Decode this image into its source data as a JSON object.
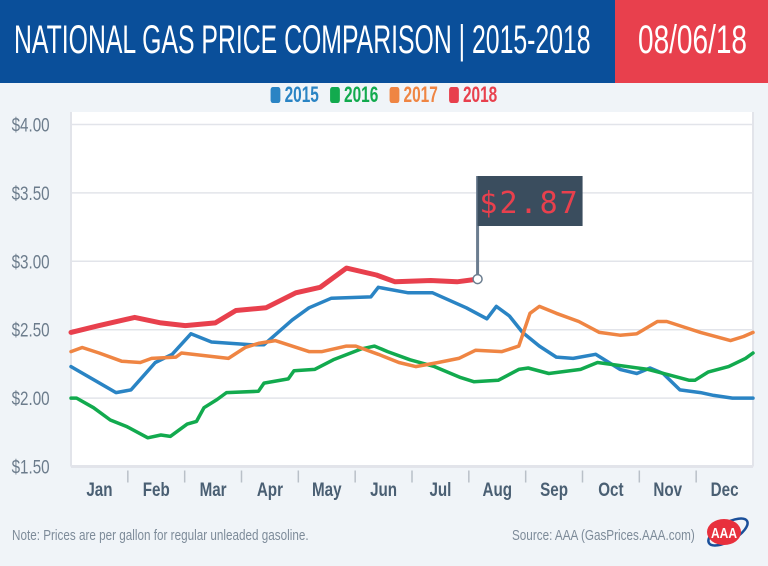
{
  "header": {
    "title": "NATIONAL GAS PRICE COMPARISON",
    "separator": "|",
    "subtitle": "2015-2018",
    "date": "08/06/18"
  },
  "colors": {
    "header_bg": "#0a4f9a",
    "date_bg": "#e8404d",
    "2015": "#2a84c4",
    "2016": "#12aa4e",
    "2017": "#ef8543",
    "2018": "#e8404d",
    "flag_bg": "#3a4d5e"
  },
  "footer": {
    "note": "Note: Prices are per gallon for regular unleaded gasoline.",
    "source": "Source: AAA (GasPrices.AAA.com)",
    "logo": "AAA"
  },
  "chart_data": {
    "type": "line",
    "title": "NATIONAL GAS PRICE COMPARISON | 2015-2018",
    "ylim": [
      1.5,
      4.0
    ],
    "yticks": [
      "$1.50",
      "$2.00",
      "$2.50",
      "$3.00",
      "$3.50",
      "$4.00"
    ],
    "ytick_values": [
      1.5,
      2.0,
      2.5,
      3.0,
      3.5,
      4.0
    ],
    "xticks": [
      "Jan",
      "Feb",
      "Mar",
      "Apr",
      "May",
      "Jun",
      "Jul",
      "Aug",
      "Sep",
      "Oct",
      "Nov",
      "Dec"
    ],
    "grid": "horizontal",
    "legend_placement": "top-center",
    "annotation": {
      "label": "$2.87",
      "date": "08-06",
      "value": 2.87,
      "series": "2018"
    },
    "series": [
      {
        "name": "2015",
        "color": "#2a84c4",
        "points": [
          [
            "01-01",
            2.23
          ],
          [
            "01-25",
            2.04
          ],
          [
            "02-02",
            2.06
          ],
          [
            "02-15",
            2.26
          ],
          [
            "02-24",
            2.32
          ],
          [
            "03-06",
            2.47
          ],
          [
            "03-17",
            2.41
          ],
          [
            "04-07",
            2.39
          ],
          [
            "04-14",
            2.39
          ],
          [
            "04-29",
            2.57
          ],
          [
            "05-08",
            2.66
          ],
          [
            "05-20",
            2.73
          ],
          [
            "06-10",
            2.74
          ],
          [
            "06-14",
            2.81
          ],
          [
            "06-30",
            2.77
          ],
          [
            "07-13",
            2.77
          ],
          [
            "07-31",
            2.66
          ],
          [
            "08-11",
            2.58
          ],
          [
            "08-16",
            2.67
          ],
          [
            "08-23",
            2.6
          ],
          [
            "08-30",
            2.48
          ],
          [
            "09-08",
            2.38
          ],
          [
            "09-17",
            2.3
          ],
          [
            "09-26",
            2.29
          ],
          [
            "10-08",
            2.32
          ],
          [
            "10-21",
            2.21
          ],
          [
            "10-30",
            2.18
          ],
          [
            "11-06",
            2.22
          ],
          [
            "11-13",
            2.18
          ],
          [
            "11-22",
            2.06
          ],
          [
            "12-03",
            2.04
          ],
          [
            "12-10",
            2.02
          ],
          [
            "12-20",
            2.0
          ],
          [
            "12-31",
            2.0
          ]
        ]
      },
      {
        "name": "2016",
        "color": "#12aa4e",
        "points": [
          [
            "01-01",
            2.0
          ],
          [
            "01-04",
            2.0
          ],
          [
            "01-13",
            1.93
          ],
          [
            "01-22",
            1.84
          ],
          [
            "01-31",
            1.79
          ],
          [
            "02-11",
            1.71
          ],
          [
            "02-18",
            1.73
          ],
          [
            "02-23",
            1.72
          ],
          [
            "03-04",
            1.81
          ],
          [
            "03-09",
            1.83
          ],
          [
            "03-13",
            1.93
          ],
          [
            "03-20",
            1.99
          ],
          [
            "03-25",
            2.04
          ],
          [
            "04-11",
            2.05
          ],
          [
            "04-14",
            2.11
          ],
          [
            "04-27",
            2.14
          ],
          [
            "04-30",
            2.2
          ],
          [
            "05-11",
            2.21
          ],
          [
            "05-21",
            2.28
          ],
          [
            "06-05",
            2.36
          ],
          [
            "06-12",
            2.38
          ],
          [
            "06-19",
            2.34
          ],
          [
            "07-01",
            2.28
          ],
          [
            "07-14",
            2.23
          ],
          [
            "07-28",
            2.15
          ],
          [
            "08-04",
            2.12
          ],
          [
            "08-17",
            2.13
          ],
          [
            "08-28",
            2.21
          ],
          [
            "09-02",
            2.22
          ],
          [
            "09-13",
            2.18
          ],
          [
            "09-30",
            2.21
          ],
          [
            "10-09",
            2.26
          ],
          [
            "11-05",
            2.21
          ],
          [
            "11-16",
            2.17
          ],
          [
            "11-27",
            2.13
          ],
          [
            "11-30",
            2.13
          ],
          [
            "12-07",
            2.19
          ],
          [
            "12-18",
            2.23
          ],
          [
            "12-27",
            2.29
          ],
          [
            "12-31",
            2.33
          ]
        ]
      },
      {
        "name": "2017",
        "color": "#ef8543",
        "points": [
          [
            "01-01",
            2.34
          ],
          [
            "01-07",
            2.37
          ],
          [
            "01-16",
            2.33
          ],
          [
            "01-28",
            2.27
          ],
          [
            "02-07",
            2.26
          ],
          [
            "02-13",
            2.29
          ],
          [
            "02-26",
            2.3
          ],
          [
            "03-01",
            2.33
          ],
          [
            "03-26",
            2.29
          ],
          [
            "04-04",
            2.37
          ],
          [
            "04-11",
            2.4
          ],
          [
            "04-20",
            2.42
          ],
          [
            "05-08",
            2.34
          ],
          [
            "05-15",
            2.34
          ],
          [
            "05-28",
            2.38
          ],
          [
            "06-02",
            2.38
          ],
          [
            "06-14",
            2.32
          ],
          [
            "06-25",
            2.26
          ],
          [
            "07-04",
            2.23
          ],
          [
            "07-16",
            2.26
          ],
          [
            "07-27",
            2.29
          ],
          [
            "08-05",
            2.35
          ],
          [
            "08-19",
            2.34
          ],
          [
            "08-28",
            2.38
          ],
          [
            "09-03",
            2.62
          ],
          [
            "09-08",
            2.67
          ],
          [
            "09-17",
            2.62
          ],
          [
            "09-29",
            2.56
          ],
          [
            "10-10",
            2.48
          ],
          [
            "10-21",
            2.46
          ],
          [
            "10-30",
            2.47
          ],
          [
            "11-10",
            2.56
          ],
          [
            "11-15",
            2.56
          ],
          [
            "11-24",
            2.52
          ],
          [
            "12-03",
            2.48
          ],
          [
            "12-19",
            2.42
          ],
          [
            "12-26",
            2.45
          ],
          [
            "12-31",
            2.48
          ]
        ]
      },
      {
        "name": "2018",
        "color": "#e8404d",
        "points": [
          [
            "01-01",
            2.48
          ],
          [
            "01-16",
            2.53
          ],
          [
            "02-04",
            2.59
          ],
          [
            "02-18",
            2.55
          ],
          [
            "03-03",
            2.53
          ],
          [
            "03-19",
            2.55
          ],
          [
            "03-30",
            2.64
          ],
          [
            "04-15",
            2.66
          ],
          [
            "05-01",
            2.77
          ],
          [
            "05-14",
            2.81
          ],
          [
            "05-28",
            2.95
          ],
          [
            "06-13",
            2.9
          ],
          [
            "06-23",
            2.85
          ],
          [
            "07-12",
            2.86
          ],
          [
            "07-26",
            2.85
          ],
          [
            "08-06",
            2.87
          ]
        ]
      }
    ]
  }
}
